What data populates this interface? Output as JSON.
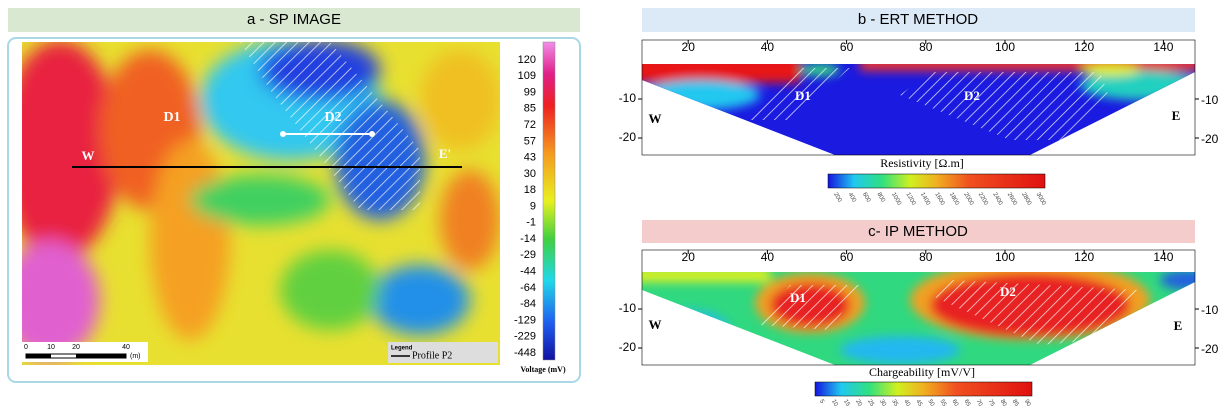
{
  "panel_a": {
    "title": "a - SP IMAGE",
    "labels": [
      "D1",
      "D2",
      "W",
      "E'"
    ],
    "colorbar": {
      "ticks": [
        120,
        109,
        99,
        85,
        72,
        57,
        43,
        30,
        18,
        9,
        -1,
        -14,
        -29,
        -44,
        -64,
        -84,
        -129,
        -229,
        -448
      ],
      "label": "Voltage (mV)"
    },
    "scale": {
      "ticks": [
        0,
        10,
        20,
        40
      ],
      "unit": "(m)"
    },
    "legend": {
      "title": "Legend",
      "item": "Profile P2"
    }
  },
  "panel_b": {
    "title": "b - ERT METHOD",
    "xticks": [
      20,
      40,
      60,
      80,
      100,
      120,
      140
    ],
    "yticks": [
      -10,
      -20
    ],
    "labels": [
      "D1",
      "D2",
      "W",
      "E"
    ],
    "colorbar": {
      "label": "Resistivity [Ω.m]",
      "ticks": [
        200,
        400,
        600,
        800,
        1000,
        1200,
        1400,
        1600,
        1800,
        2000,
        2200,
        2400,
        2600,
        2800,
        3000
      ]
    }
  },
  "panel_c": {
    "title": "c- IP METHOD",
    "xticks": [
      20,
      40,
      60,
      80,
      100,
      120,
      140
    ],
    "yticks": [
      -10,
      -20
    ],
    "labels": [
      "D1",
      "D2",
      "W",
      "E"
    ],
    "colorbar": {
      "label": "Chargeability [mV/V]",
      "ticks": [
        5,
        10,
        15,
        20,
        25,
        30,
        35,
        40,
        45,
        50,
        55,
        60,
        65,
        70,
        75,
        80,
        85,
        90
      ]
    }
  }
}
